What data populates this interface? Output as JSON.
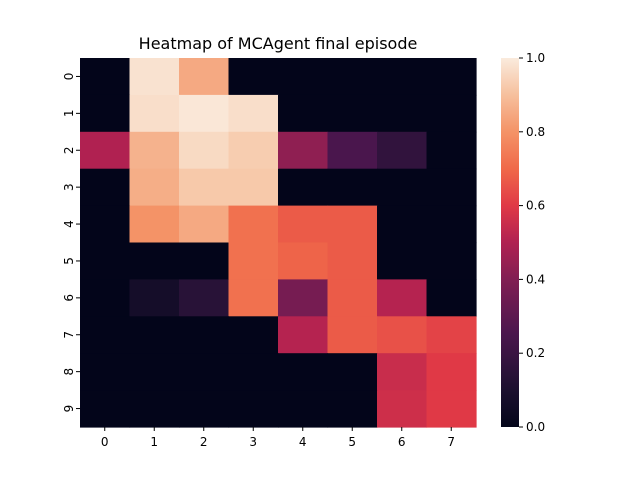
{
  "chart_data": {
    "type": "heatmap",
    "title": "Heatmap of MCAgent final episode",
    "xlabel": "",
    "ylabel": "",
    "x_ticks": [
      "0",
      "1",
      "2",
      "3",
      "4",
      "5",
      "6",
      "7"
    ],
    "y_ticks": [
      "0",
      "1",
      "2",
      "3",
      "4",
      "5",
      "6",
      "7",
      "8",
      "9"
    ],
    "colorbar": {
      "range": [
        0.0,
        1.0
      ],
      "ticks": [
        "0.0",
        "0.2",
        "0.4",
        "0.6",
        "0.8",
        "1.0"
      ],
      "colormap": "rocket"
    },
    "values": [
      [
        0,
        0.98,
        0.85,
        0,
        0,
        0,
        0,
        0
      ],
      [
        0,
        0.97,
        0.99,
        0.97,
        0,
        0,
        0,
        0
      ],
      [
        0.5,
        0.87,
        0.96,
        0.93,
        0.43,
        0.25,
        0.17,
        0
      ],
      [
        0,
        0.86,
        0.92,
        0.92,
        0,
        0,
        0,
        0
      ],
      [
        0,
        0.8,
        0.85,
        0.72,
        0.67,
        0.67,
        0,
        0
      ],
      [
        0,
        0,
        0,
        0.72,
        0.69,
        0.67,
        0,
        0
      ],
      [
        0,
        0.07,
        0.14,
        0.72,
        0.37,
        0.67,
        0.51,
        0
      ],
      [
        0,
        0,
        0,
        0,
        0.51,
        0.67,
        0.65,
        0.62
      ],
      [
        0,
        0,
        0,
        0,
        0,
        0,
        0.55,
        0.6
      ],
      [
        0,
        0,
        0,
        0,
        0,
        0,
        0.56,
        0.6
      ]
    ]
  }
}
